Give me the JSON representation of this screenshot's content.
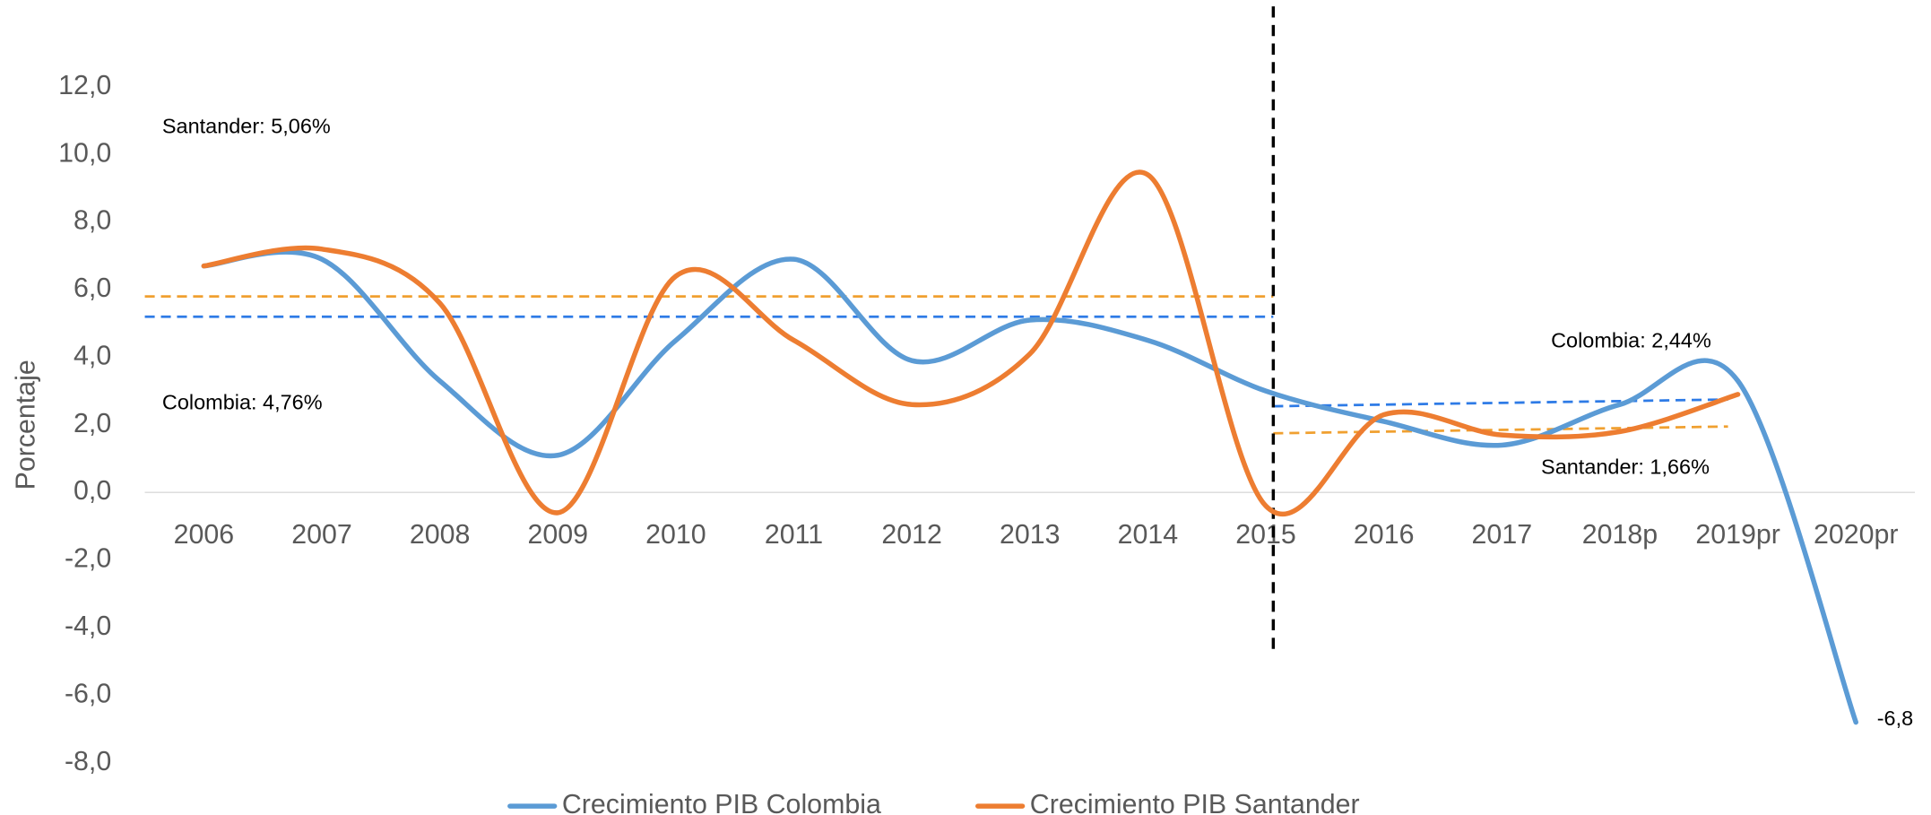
{
  "chart_data": {
    "type": "line",
    "y_label": "Porcentaje",
    "categories": [
      "2006",
      "2007",
      "2008",
      "2009",
      "2010",
      "2011",
      "2012",
      "2013",
      "2014",
      "2015",
      "2016",
      "2017",
      "2018p",
      "2019pr",
      "2020pr"
    ],
    "series": [
      {
        "name": "Crecimiento PIB Colombia",
        "color": "#5b9bd5",
        "values": [
          6.7,
          6.9,
          3.3,
          1.1,
          4.5,
          6.9,
          3.9,
          5.1,
          4.5,
          3.0,
          2.1,
          1.4,
          2.6,
          3.3,
          -6.8
        ],
        "value_labels": [
          null,
          null,
          null,
          null,
          null,
          null,
          null,
          null,
          null,
          null,
          null,
          null,
          null,
          null,
          "-6,8"
        ]
      },
      {
        "name": "Crecimiento PIB Santander",
        "color": "#ed7d31",
        "values": [
          6.7,
          7.2,
          5.6,
          -0.6,
          6.4,
          4.5,
          2.6,
          4.1,
          9.4,
          -0.4,
          2.3,
          1.7,
          1.8,
          2.9,
          null
        ]
      }
    ],
    "reference_lines": [
      {
        "color": "#f0a030",
        "values": [
          5.8,
          5.8
        ]
      },
      {
        "color": "#2e7be6",
        "values": [
          5.2,
          5.2
        ]
      },
      {
        "color": "#2e7be6",
        "values": [
          2.55,
          2.75
        ]
      },
      {
        "color": "#f0a030",
        "values": [
          1.75,
          1.95
        ]
      }
    ],
    "annotations": [
      "Santander: 5,06%",
      "Colombia: 4,76%",
      "Colombia: 2,44%",
      "Santander: 1,66%"
    ],
    "ylim": [
      -8,
      12
    ],
    "yticks": [
      {
        "value": -8,
        "label": "-8,0"
      },
      {
        "value": -6,
        "label": "-6,0"
      },
      {
        "value": -4,
        "label": "-4,0"
      },
      {
        "value": -2,
        "label": "-2,0"
      },
      {
        "value": 0,
        "label": "0,0"
      },
      {
        "value": 2,
        "label": "2,0"
      },
      {
        "value": 4,
        "label": "4,0"
      },
      {
        "value": 6,
        "label": "6,0"
      },
      {
        "value": 8,
        "label": "8,0"
      },
      {
        "value": 10,
        "label": "10,0"
      },
      {
        "value": 12,
        "label": "12,0"
      }
    ],
    "legend": "bottom"
  }
}
